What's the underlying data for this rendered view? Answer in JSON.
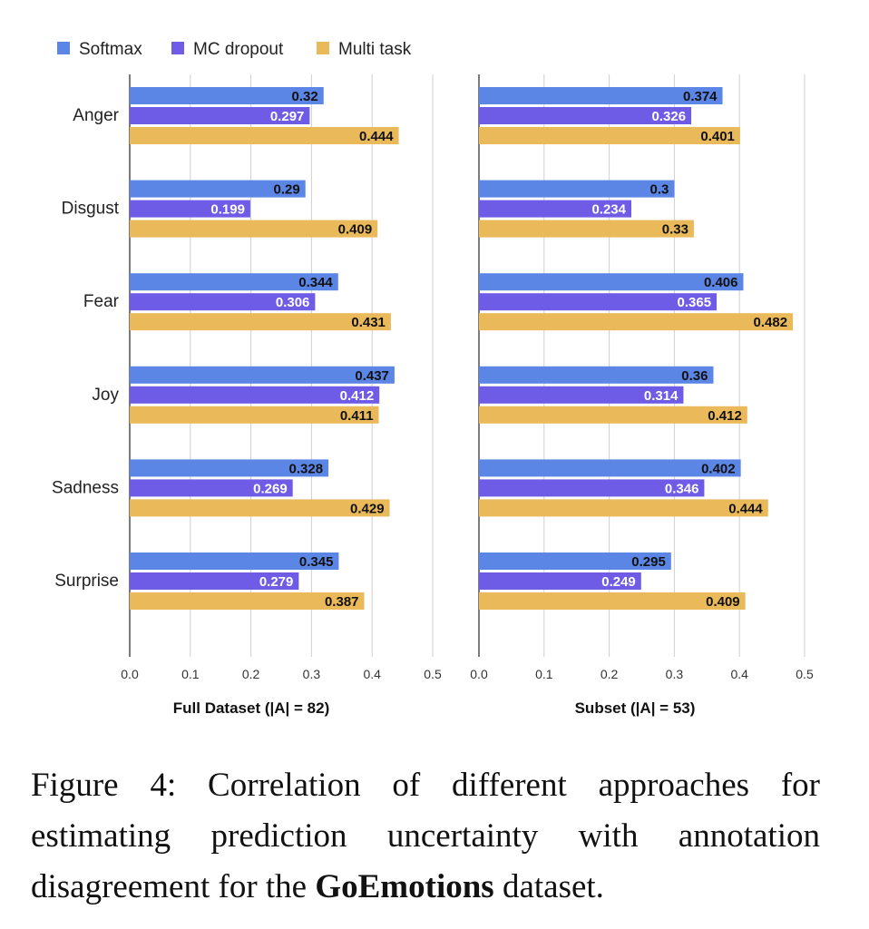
{
  "colors": {
    "softmax": "#5b86e5",
    "mc_dropout": "#6f5ce6",
    "multi_task": "#eab95a",
    "gridline": "#cfcfcf",
    "axis": "#333333"
  },
  "chart_data": [
    {
      "type": "bar",
      "orientation": "horizontal",
      "title": "Full Dataset (|A| = 82)",
      "categories": [
        "Anger",
        "Disgust",
        "Fear",
        "Joy",
        "Sadness",
        "Surprise"
      ],
      "series": [
        {
          "name": "Softmax",
          "values": [
            0.32,
            0.29,
            0.344,
            0.437,
            0.328,
            0.345
          ],
          "labels": [
            "0.32",
            "0.29",
            "0.344",
            "0.437",
            "0.328",
            "0.345"
          ]
        },
        {
          "name": "MC dropout",
          "values": [
            0.297,
            0.199,
            0.306,
            0.412,
            0.269,
            0.279
          ],
          "labels": [
            "0.297",
            "0.199",
            "0.306",
            "0.412",
            "0.269",
            "0.279"
          ]
        },
        {
          "name": "Multi task",
          "values": [
            0.444,
            0.409,
            0.431,
            0.411,
            0.429,
            0.387
          ],
          "labels": [
            "0.444",
            "0.409",
            "0.431",
            "0.411",
            "0.429",
            "0.387"
          ]
        }
      ],
      "xlim": [
        0,
        0.5
      ],
      "xticks": [
        "0.0",
        "0.1",
        "0.2",
        "0.3",
        "0.4",
        "0.5"
      ],
      "grid": true
    },
    {
      "type": "bar",
      "orientation": "horizontal",
      "title": "Subset (|A| = 53)",
      "categories": [
        "Anger",
        "Disgust",
        "Fear",
        "Joy",
        "Sadness",
        "Surprise"
      ],
      "series": [
        {
          "name": "Softmax",
          "values": [
            0.374,
            0.3,
            0.406,
            0.36,
            0.402,
            0.295
          ],
          "labels": [
            "0.374",
            "0.3",
            "0.406",
            "0.36",
            "0.402",
            "0.295"
          ]
        },
        {
          "name": "MC dropout",
          "values": [
            0.326,
            0.234,
            0.365,
            0.314,
            0.346,
            0.249
          ],
          "labels": [
            "0.326",
            "0.234",
            "0.365",
            "0.314",
            "0.346",
            "0.249"
          ]
        },
        {
          "name": "Multi task",
          "values": [
            0.401,
            0.33,
            0.482,
            0.412,
            0.444,
            0.409
          ],
          "labels": [
            "0.401",
            "0.33",
            "0.482",
            "0.412",
            "0.444",
            "0.409"
          ]
        }
      ],
      "xlim": [
        0,
        0.5
      ],
      "xticks": [
        "0.0",
        "0.1",
        "0.2",
        "0.3",
        "0.4",
        "0.5"
      ],
      "grid": true
    }
  ],
  "legend": {
    "placement": "top-left",
    "items": [
      "Softmax",
      "MC dropout",
      "Multi task"
    ]
  },
  "caption": {
    "lead": "Figure 4:  Correlation of different approaches for estimating prediction uncertainty with annotation disagreement for the ",
    "bold": "GoEmotions",
    "tail": " dataset."
  }
}
